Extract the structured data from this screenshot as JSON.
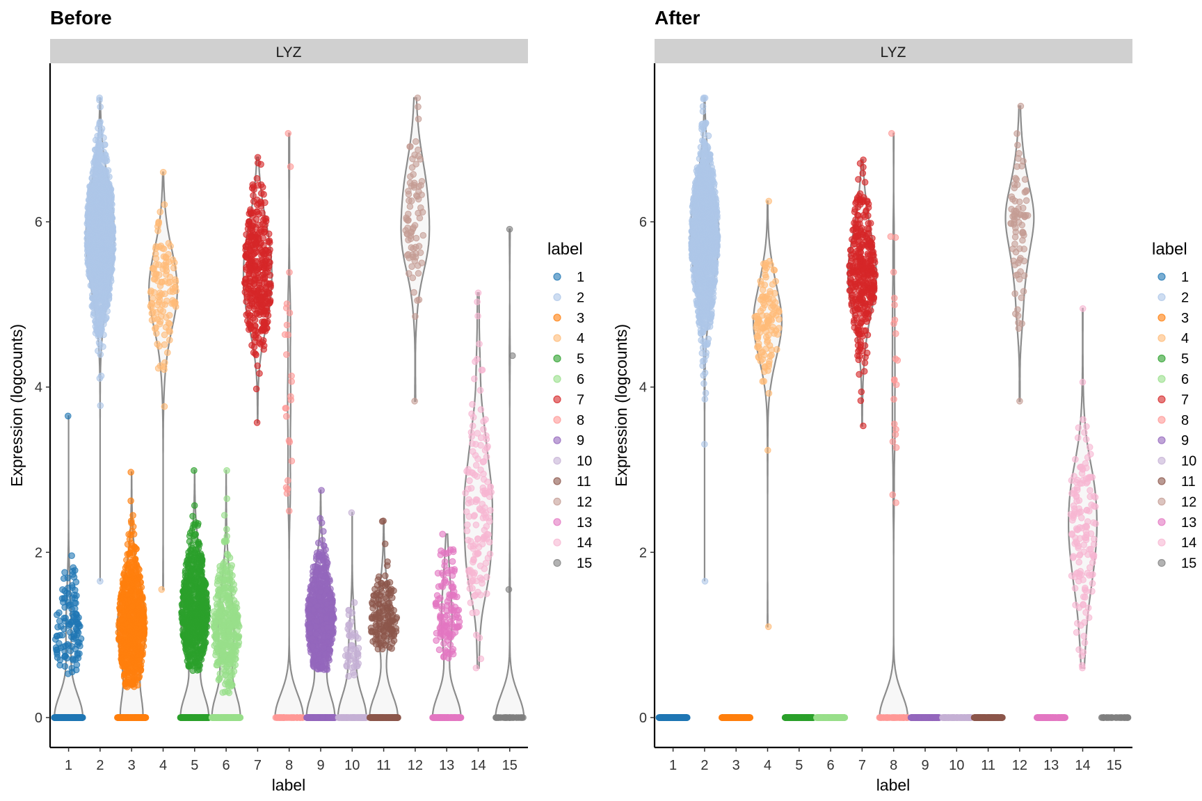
{
  "colors": {
    "1": "#1f77b4",
    "2": "#aec7e8",
    "3": "#ff7f0e",
    "4": "#ffbb78",
    "5": "#2ca02c",
    "6": "#98df8a",
    "7": "#d62728",
    "8": "#ff9896",
    "9": "#9467bd",
    "10": "#c5b0d5",
    "11": "#8c564b",
    "12": "#c49c94",
    "13": "#e377c2",
    "14": "#f7b6d2",
    "15": "#7f7f7f"
  },
  "chart_data": [
    {
      "type": "violin",
      "title": "Before",
      "facet": "LYZ",
      "xlabel": "label",
      "ylabel": "Expression (logcounts)",
      "legend_title": "label",
      "legend_position": "right",
      "categories": [
        "1",
        "2",
        "3",
        "4",
        "5",
        "6",
        "7",
        "8",
        "9",
        "10",
        "11",
        "12",
        "13",
        "14",
        "15"
      ],
      "yticks": [
        0,
        2,
        4,
        6
      ],
      "ylim": [
        -0.36,
        7.92
      ],
      "grid": false,
      "groups": [
        {
          "label": "1",
          "n_zero": 400,
          "n_nonzero": 120,
          "min": 0.53,
          "max": 3.65,
          "center": 1.1,
          "sd": 0.35
        },
        {
          "label": "2",
          "n_zero": 0,
          "n_nonzero": 1200,
          "min": 1.65,
          "max": 7.5,
          "center": 5.8,
          "sd": 0.5
        },
        {
          "label": "3",
          "n_zero": 300,
          "n_nonzero": 700,
          "min": 0.37,
          "max": 2.97,
          "center": 1.1,
          "sd": 0.4
        },
        {
          "label": "4",
          "n_zero": 0,
          "n_nonzero": 120,
          "min": 1.55,
          "max": 6.6,
          "center": 5.15,
          "sd": 0.35
        },
        {
          "label": "5",
          "n_zero": 350,
          "n_nonzero": 600,
          "min": 0.57,
          "max": 2.99,
          "center": 1.3,
          "sd": 0.4
        },
        {
          "label": "6",
          "n_zero": 350,
          "n_nonzero": 350,
          "min": 0.3,
          "max": 2.99,
          "center": 1.1,
          "sd": 0.4
        },
        {
          "label": "7",
          "n_zero": 0,
          "n_nonzero": 350,
          "min": 3.57,
          "max": 6.78,
          "center": 5.4,
          "sd": 0.45
        },
        {
          "label": "8",
          "n_zero": 60,
          "n_nonzero": 25,
          "min": 2.5,
          "max": 7.07,
          "center": 3.8,
          "sd": 1.2
        },
        {
          "label": "9",
          "n_zero": 400,
          "n_nonzero": 600,
          "min": 0.58,
          "max": 2.75,
          "center": 1.2,
          "sd": 0.35
        },
        {
          "label": "10",
          "n_zero": 150,
          "n_nonzero": 50,
          "min": 0.5,
          "max": 2.48,
          "center": 0.75,
          "sd": 0.3
        },
        {
          "label": "11",
          "n_zero": 250,
          "n_nonzero": 150,
          "min": 0.83,
          "max": 2.38,
          "center": 1.15,
          "sd": 0.3
        },
        {
          "label": "12",
          "n_zero": 0,
          "n_nonzero": 80,
          "min": 3.83,
          "max": 7.5,
          "center": 6.0,
          "sd": 0.5
        },
        {
          "label": "13",
          "n_zero": 200,
          "n_nonzero": 120,
          "min": 0.72,
          "max": 2.22,
          "center": 1.3,
          "sd": 0.35
        },
        {
          "label": "14",
          "n_zero": 0,
          "n_nonzero": 150,
          "min": 0.6,
          "max": 5.14,
          "center": 2.6,
          "sd": 0.7
        },
        {
          "label": "15",
          "n_zero": 40,
          "n_nonzero": 3,
          "min": 1.55,
          "max": 5.91,
          "values": [
            1.55,
            4.38,
            5.91
          ]
        }
      ]
    },
    {
      "type": "violin",
      "title": "After",
      "facet": "LYZ",
      "xlabel": "label",
      "ylabel": "Expression (logcounts)",
      "legend_title": "label",
      "legend_position": "right",
      "categories": [
        "1",
        "2",
        "3",
        "4",
        "5",
        "6",
        "7",
        "8",
        "9",
        "10",
        "11",
        "12",
        "13",
        "14",
        "15"
      ],
      "yticks": [
        0,
        2,
        4,
        6
      ],
      "ylim": [
        -0.36,
        7.92
      ],
      "grid": false,
      "groups": [
        {
          "label": "1",
          "n_zero": 400,
          "n_nonzero": 0
        },
        {
          "label": "2",
          "n_zero": 0,
          "n_nonzero": 1200,
          "min": 1.65,
          "max": 7.5,
          "center": 5.8,
          "sd": 0.5
        },
        {
          "label": "3",
          "n_zero": 300,
          "n_nonzero": 0
        },
        {
          "label": "4",
          "n_zero": 0,
          "n_nonzero": 120,
          "min": 1.1,
          "max": 6.25,
          "center": 4.8,
          "sd": 0.35
        },
        {
          "label": "5",
          "n_zero": 350,
          "n_nonzero": 0
        },
        {
          "label": "6",
          "n_zero": 350,
          "n_nonzero": 0
        },
        {
          "label": "7",
          "n_zero": 0,
          "n_nonzero": 350,
          "min": 3.53,
          "max": 6.75,
          "center": 5.4,
          "sd": 0.45
        },
        {
          "label": "8",
          "n_zero": 60,
          "n_nonzero": 22,
          "min": 2.6,
          "max": 7.07,
          "center": 3.5,
          "sd": 1.1
        },
        {
          "label": "9",
          "n_zero": 400,
          "n_nonzero": 0
        },
        {
          "label": "10",
          "n_zero": 150,
          "n_nonzero": 0
        },
        {
          "label": "11",
          "n_zero": 250,
          "n_nonzero": 0
        },
        {
          "label": "12",
          "n_zero": 0,
          "n_nonzero": 80,
          "min": 3.83,
          "max": 7.4,
          "center": 5.9,
          "sd": 0.5
        },
        {
          "label": "13",
          "n_zero": 200,
          "n_nonzero": 0
        },
        {
          "label": "14",
          "n_zero": 0,
          "n_nonzero": 150,
          "min": 0.6,
          "max": 4.95,
          "center": 2.3,
          "sd": 0.6
        },
        {
          "label": "15",
          "n_zero": 40,
          "n_nonzero": 0
        }
      ]
    }
  ]
}
